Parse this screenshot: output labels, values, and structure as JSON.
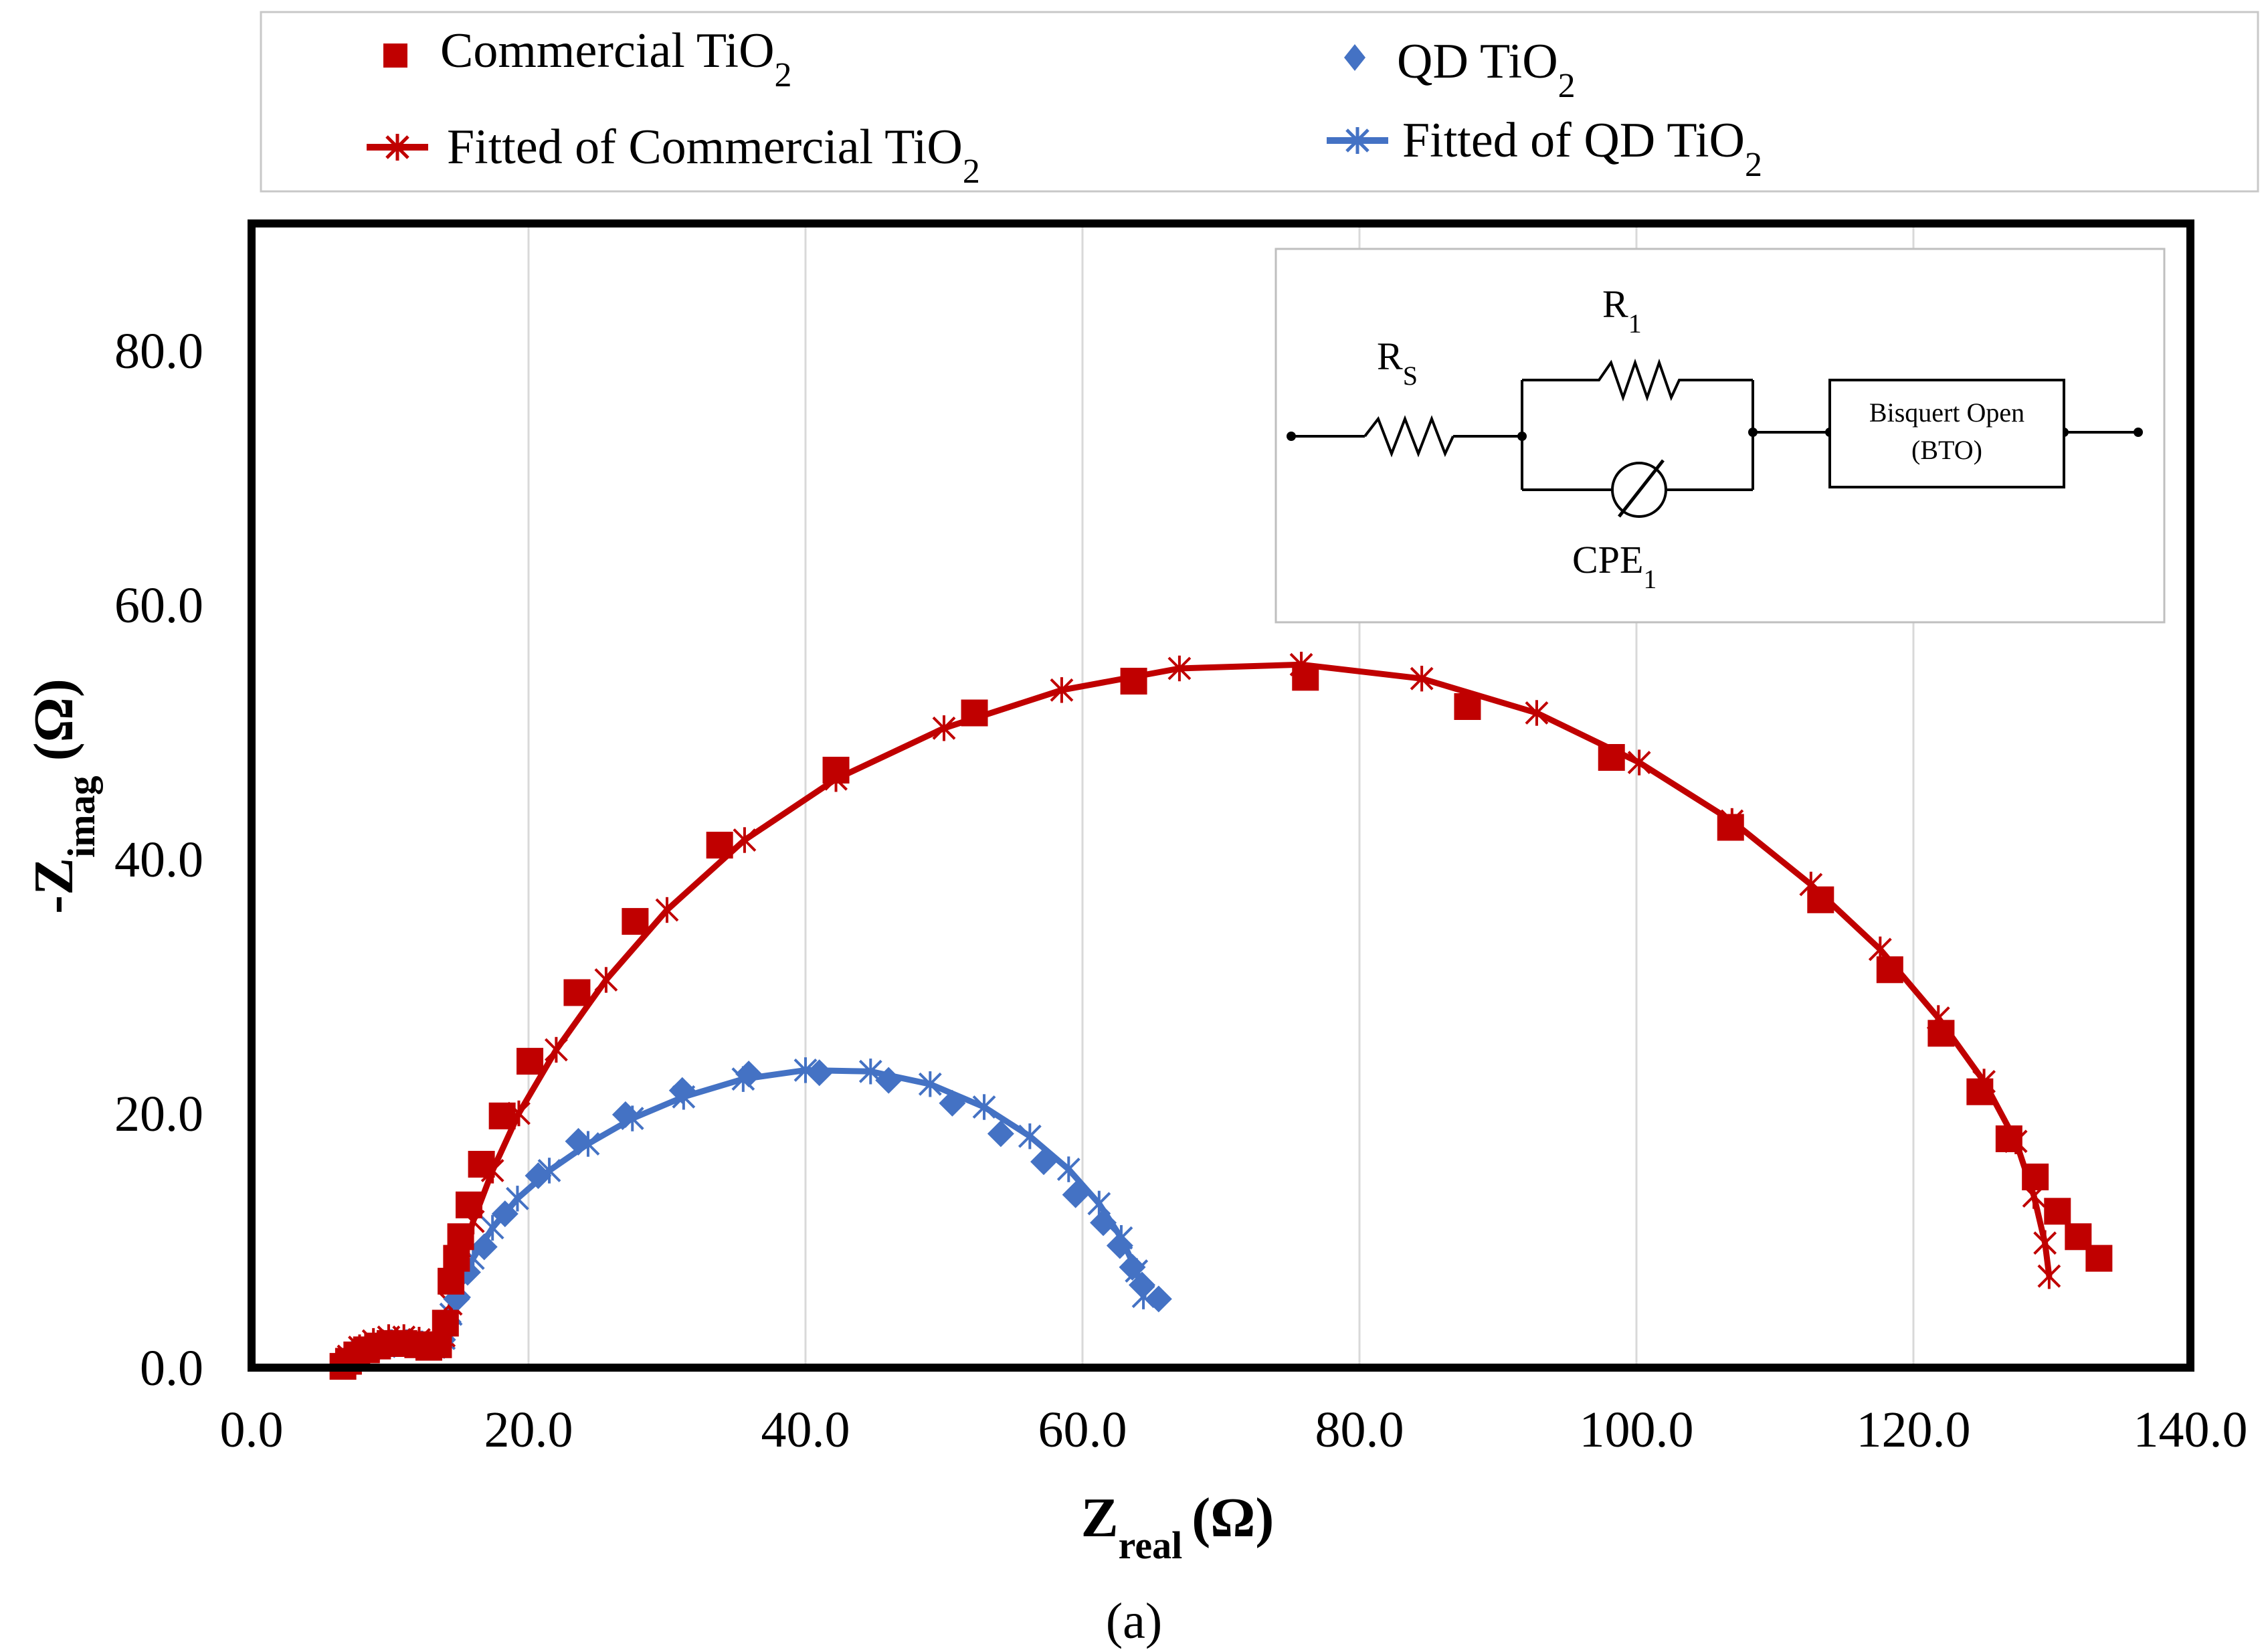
{
  "chart_data": {
    "type": "scatter",
    "xlabel_main": "Z",
    "xlabel_sub": "real",
    "xlabel_unit": "(Ω)",
    "ylabel_prefix": "-Z",
    "ylabel_sub": "imag",
    "ylabel_unit": "(Ω)",
    "xlim": [
      0,
      140
    ],
    "ylim": [
      0,
      90
    ],
    "x_ticks": [
      0,
      20,
      40,
      60,
      80,
      100,
      120,
      140
    ],
    "x_tick_labels": [
      "0.0",
      "20.0",
      "40.0",
      "60.0",
      "80.0",
      "100.0",
      "120.0",
      "140.0"
    ],
    "y_ticks": [
      0,
      20,
      40,
      60,
      80
    ],
    "y_tick_labels": [
      "0.0",
      "20.0",
      "40.0",
      "60.0",
      "80.0"
    ],
    "grid": "vertical",
    "legend_position": "top",
    "caption": "(a)",
    "series": [
      {
        "name": "Commercial TiO2",
        "label_main": "Commercial TiO",
        "label_sub": "2",
        "color": "#c00000",
        "marker": "square",
        "points": [
          [
            6.6,
            0.1
          ],
          [
            7.0,
            0.5
          ],
          [
            7.6,
            1.0
          ],
          [
            8.3,
            1.4
          ],
          [
            9.1,
            1.7
          ],
          [
            10.0,
            1.9
          ],
          [
            11.0,
            1.9
          ],
          [
            12.0,
            1.8
          ],
          [
            12.8,
            1.6
          ],
          [
            13.5,
            1.8
          ],
          [
            14.0,
            3.5
          ],
          [
            14.4,
            6.8
          ],
          [
            14.8,
            8.6
          ],
          [
            15.1,
            10.3
          ],
          [
            15.7,
            12.8
          ],
          [
            16.6,
            16.0
          ],
          [
            18.1,
            19.8
          ],
          [
            20.1,
            24.1
          ],
          [
            23.5,
            29.5
          ],
          [
            27.7,
            35.1
          ],
          [
            33.8,
            41.1
          ],
          [
            42.2,
            47.0
          ],
          [
            52.2,
            51.5
          ],
          [
            63.7,
            54.0
          ],
          [
            76.1,
            54.3
          ],
          [
            87.8,
            52.0
          ],
          [
            98.2,
            48.0
          ],
          [
            106.8,
            42.5
          ],
          [
            113.3,
            36.8
          ],
          [
            118.3,
            31.3
          ],
          [
            122.0,
            26.3
          ],
          [
            124.8,
            21.7
          ],
          [
            126.9,
            18.0
          ],
          [
            128.8,
            15.0
          ],
          [
            130.4,
            12.3
          ],
          [
            131.9,
            10.3
          ],
          [
            133.4,
            8.6
          ]
        ]
      },
      {
        "name": "QD TiO2",
        "label_main": "QD TiO",
        "label_sub": "2",
        "color": "#4472c4",
        "marker": "diamond",
        "points": [
          [
            6.8,
            0.1
          ],
          [
            7.4,
            0.6
          ],
          [
            8.2,
            1.1
          ],
          [
            9.2,
            1.6
          ],
          [
            10.3,
            1.8
          ],
          [
            11.4,
            1.9
          ],
          [
            12.4,
            1.8
          ],
          [
            13.2,
            1.6
          ],
          [
            13.8,
            2.2
          ],
          [
            14.2,
            3.6
          ],
          [
            14.8,
            5.4
          ],
          [
            15.6,
            7.5
          ],
          [
            16.8,
            9.5
          ],
          [
            18.3,
            12.1
          ],
          [
            20.7,
            15.1
          ],
          [
            23.6,
            17.8
          ],
          [
            27.0,
            19.9
          ],
          [
            31.1,
            21.8
          ],
          [
            35.9,
            23.1
          ],
          [
            41.0,
            23.2
          ],
          [
            46.0,
            22.6
          ],
          [
            50.6,
            20.8
          ],
          [
            54.1,
            18.4
          ],
          [
            57.2,
            16.2
          ],
          [
            59.5,
            13.6
          ],
          [
            61.5,
            11.4
          ],
          [
            62.7,
            9.6
          ],
          [
            63.6,
            7.9
          ],
          [
            64.3,
            6.5
          ],
          [
            65.5,
            5.4
          ]
        ]
      },
      {
        "name": "Fitted of Commercial TiO2",
        "label_main": "Fitted of Commercial TiO",
        "label_sub": "2",
        "color": "#c00000",
        "marker": "asterisk",
        "points": [
          [
            6.5,
            0.1
          ],
          [
            7.0,
            0.9
          ],
          [
            7.8,
            1.6
          ],
          [
            8.8,
            2.1
          ],
          [
            9.9,
            2.4
          ],
          [
            11.0,
            2.4
          ],
          [
            12.1,
            2.2
          ],
          [
            13.1,
            1.8
          ],
          [
            13.9,
            2.5
          ],
          [
            14.4,
            5.0
          ],
          [
            15.0,
            8.0
          ],
          [
            16.0,
            11.5
          ],
          [
            17.4,
            15.5
          ],
          [
            19.3,
            20.0
          ],
          [
            22.0,
            25.0
          ],
          [
            25.6,
            30.5
          ],
          [
            30.0,
            36.0
          ],
          [
            35.6,
            41.5
          ],
          [
            42.2,
            46.3
          ],
          [
            50.0,
            50.3
          ],
          [
            58.5,
            53.3
          ],
          [
            67.0,
            55.0
          ],
          [
            75.8,
            55.3
          ],
          [
            84.5,
            54.2
          ],
          [
            92.8,
            51.5
          ],
          [
            100.2,
            47.6
          ],
          [
            106.9,
            43.0
          ],
          [
            112.6,
            38.0
          ],
          [
            117.6,
            32.9
          ],
          [
            121.8,
            27.5
          ],
          [
            125.1,
            22.5
          ],
          [
            127.4,
            17.8
          ],
          [
            128.7,
            13.5
          ],
          [
            129.5,
            9.8
          ],
          [
            129.8,
            7.2
          ]
        ]
      },
      {
        "name": "Fitted of QD TiO2",
        "label_main": "Fitted of QD TiO",
        "label_sub": "2",
        "color": "#4472c4",
        "marker": "asterisk",
        "points": [
          [
            6.7,
            0.1
          ],
          [
            7.2,
            0.7
          ],
          [
            8.0,
            1.3
          ],
          [
            9.0,
            1.7
          ],
          [
            10.1,
            2.0
          ],
          [
            11.2,
            2.0
          ],
          [
            12.3,
            1.9
          ],
          [
            13.2,
            1.6
          ],
          [
            13.9,
            2.3
          ],
          [
            14.4,
            4.2
          ],
          [
            15.0,
            6.3
          ],
          [
            16.0,
            8.6
          ],
          [
            17.4,
            11.0
          ],
          [
            19.2,
            13.3
          ],
          [
            21.5,
            15.5
          ],
          [
            24.3,
            17.6
          ],
          [
            27.5,
            19.6
          ],
          [
            31.2,
            21.3
          ],
          [
            35.5,
            22.7
          ],
          [
            40.0,
            23.4
          ],
          [
            44.7,
            23.3
          ],
          [
            49.0,
            22.3
          ],
          [
            52.9,
            20.5
          ],
          [
            56.2,
            18.2
          ],
          [
            59.0,
            15.6
          ],
          [
            61.2,
            12.9
          ],
          [
            62.8,
            10.2
          ],
          [
            63.9,
            7.6
          ],
          [
            64.4,
            5.6
          ]
        ]
      }
    ]
  },
  "legend": {
    "commercial_main": "Commercial TiO",
    "commercial_sub": "2",
    "qd_main": "QD TiO",
    "qd_sub": "2",
    "fitted_commercial_main": "Fitted of Commercial TiO",
    "fitted_commercial_sub": "2",
    "fitted_qd_main": "Fitted of QD TiO",
    "fitted_qd_sub": "2"
  },
  "inset": {
    "rs_main": "R",
    "rs_sub": "S",
    "r1_main": "R",
    "r1_sub": "1",
    "cpe_main": "CPE",
    "cpe_sub": "1",
    "bto_line1": "Bisquert Open",
    "bto_line2": "(BTO)"
  }
}
